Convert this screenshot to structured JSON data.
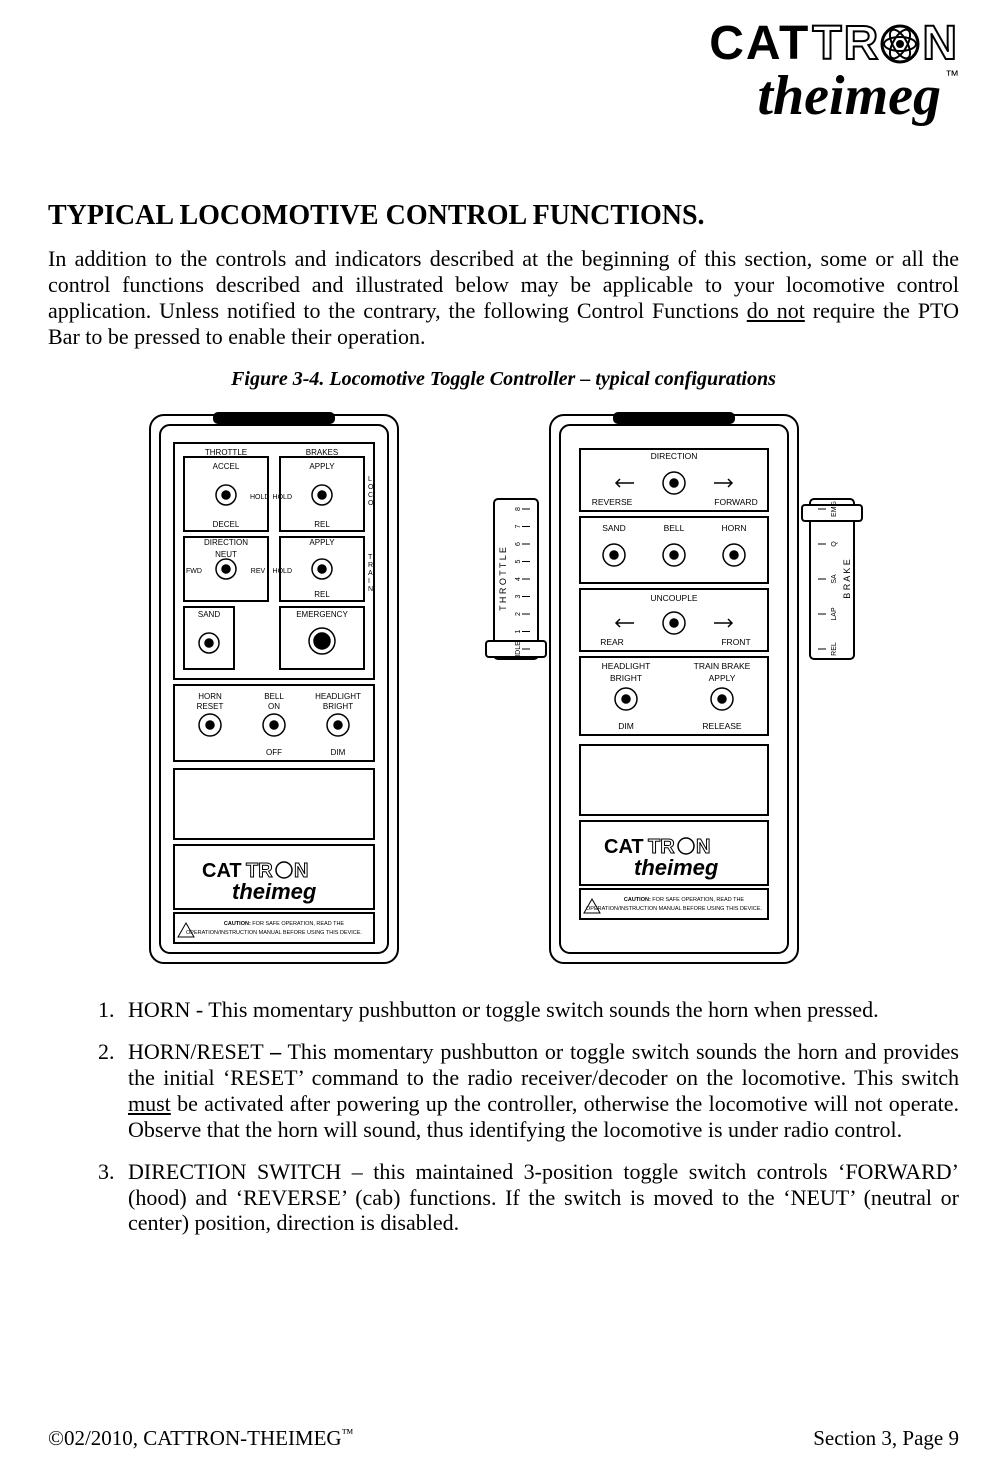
{
  "logo": {
    "part1": "CAT",
    "part2": "TR",
    "part3": "N",
    "sub": "theimeg",
    "tm": "™"
  },
  "title": "TYPICAL LOCOMOTIVE CONTROL FUNCTIONS.",
  "intro": {
    "p1a": "In addition to the controls and indicators described at the beginning of this section, some or all the control functions described and illustrated below may be applicable to your locomotive control application.  Unless notified to the contrary, the following Control Functions ",
    "p1u": "do not",
    "p1b": " require the PTO Bar to be pressed to enable their operation."
  },
  "figure_caption": "Figure 3-4.  Locomotive Toggle Controller – typical configurations",
  "controllerA": {
    "throttle": "THROTTLE",
    "accel": "ACCEL",
    "hold": "HOLD",
    "decel": "DECEL",
    "brakes": "BRAKES",
    "apply": "APPLY",
    "rel": "REL",
    "loco": "LOCO",
    "direction": "DIRECTION",
    "neut": "NEUT",
    "fwd": "FWD",
    "rev": "REV",
    "train": "TRAIN",
    "sand": "SAND",
    "emergency": "EMERGENCY",
    "horn_reset": "HORN\nRESET",
    "bell_on": "BELL\nON",
    "off": "OFF",
    "headlight": "HEADLIGHT",
    "bright": "BRIGHT",
    "dim": "DIM",
    "caution": "CAUTION:  FOR SAFE OPERATION, READ THE\nOPERATION/INSTRUCTION MANUAL BEFORE USING THIS DEVICE."
  },
  "controllerB": {
    "direction": "DIRECTION",
    "reverse": "REVERSE",
    "forward": "FORWARD",
    "sand": "SAND",
    "bell": "BELL",
    "horn": "HORN",
    "uncouple": "UNCOUPLE",
    "rear": "REAR",
    "front": "FRONT",
    "headlight": "HEADLIGHT",
    "bright": "BRIGHT",
    "dim": "DIM",
    "trainbrake": "TRAIN BRAKE",
    "apply": "APPLY",
    "release": "RELEASE",
    "left_label": "THROTTLE",
    "left_scale": [
      "IDLE",
      "1",
      "2",
      "3",
      "4",
      "5",
      "6",
      "7",
      "8"
    ],
    "right_label": "BRAKE",
    "right_scale": [
      "REL",
      "LAP",
      "SA",
      "Q",
      "EMG"
    ],
    "caution": "CAUTION:  FOR SAFE OPERATION, READ THE\nOPERATION/INSTRUCTION MANUAL BEFORE USING THIS DEVICE."
  },
  "list": {
    "i1": "HORN - This momentary pushbutton or toggle switch sounds the horn when pressed.",
    "i2a": "HORN/RESET ",
    "i2dash": "–",
    "i2b": " This momentary pushbutton or toggle switch sounds the horn and provides the initial ‘RESET’ command to the radio receiver/decoder on the locomotive.  This switch ",
    "i2u": "must",
    "i2c": " be activated after powering up the controller, otherwise the locomotive will not operate.  Observe that the horn will sound, thus identifying the locomotive is under radio control.",
    "i3": "DIRECTION SWITCH – this maintained 3-position toggle switch controls ‘FORWARD’ (hood) and ‘REVERSE’ (cab) functions. If the switch is moved to the ‘NEUT’ (neutral or center) position, direction is disabled."
  },
  "footer": {
    "left_a": "©02/2010, CATTRON-THEIMEG",
    "left_tm": "™",
    "right": "Section 3, Page 9"
  },
  "colors": {
    "text": "#000000",
    "bg": "#ffffff",
    "line": "#000000"
  }
}
